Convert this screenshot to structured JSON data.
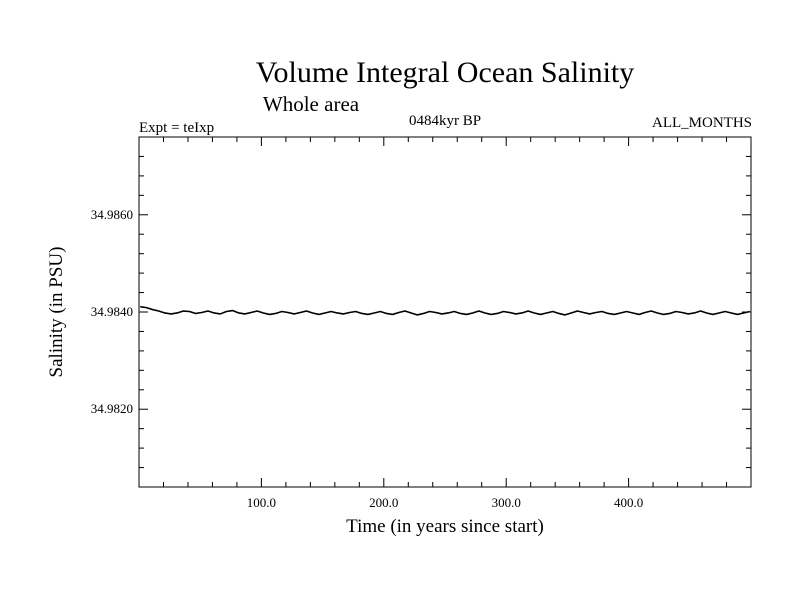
{
  "chart_data": {
    "type": "line",
    "title": "Volume Integral Ocean Salinity",
    "subtitle": "Whole area",
    "experiment": "Expt = teIxp",
    "period": "0484kyr BP",
    "months": "ALL_MONTHS",
    "xlabel": "Time (in years since start)",
    "ylabel": "Salinity (in PSU)",
    "xlim": [
      0,
      500
    ],
    "ylim": [
      34.9804,
      34.9876
    ],
    "xticks": [
      100,
      200,
      300,
      400
    ],
    "xtick_labels": [
      "100.0",
      "200.0",
      "300.0",
      "400.0"
    ],
    "yticks": [
      34.982,
      34.984,
      34.986
    ],
    "ytick_labels": [
      "34.9820",
      "34.9840",
      "34.9860"
    ],
    "series": [
      {
        "name": "salinity",
        "color": "#000000",
        "x_start": 1,
        "x_end": 499,
        "values": [
          34.98411,
          34.98409,
          34.98405,
          34.98402,
          34.98398,
          34.98396,
          34.98398,
          34.98402,
          34.98401,
          34.98397,
          34.98399,
          34.98402,
          34.98398,
          34.98396,
          34.98401,
          34.98403,
          34.98398,
          34.98396,
          34.98399,
          34.98402,
          34.98398,
          34.98395,
          34.98397,
          34.98401,
          34.98399,
          34.98396,
          34.98399,
          34.98402,
          34.98398,
          34.98395,
          34.98398,
          34.98401,
          34.98398,
          34.98396,
          34.98399,
          34.98401,
          34.98397,
          34.98395,
          34.98398,
          34.98401,
          34.98397,
          34.98395,
          34.98399,
          34.98402,
          34.98398,
          34.98394,
          34.98397,
          34.98401,
          34.98399,
          34.98396,
          34.98398,
          34.98401,
          34.98397,
          34.98395,
          34.98398,
          34.98402,
          34.98398,
          34.98395,
          34.98397,
          34.98401,
          34.98399,
          34.98396,
          34.98398,
          34.98402,
          34.98398,
          34.98395,
          34.98398,
          34.98401,
          34.98397,
          34.98394,
          34.98398,
          34.98402,
          34.98399,
          34.98396,
          34.98399,
          34.98401,
          34.98397,
          34.98395,
          34.98398,
          34.98401,
          34.98398,
          34.98395,
          34.98399,
          34.98402,
          34.98398,
          34.98395,
          34.98397,
          34.98401,
          34.98399,
          34.98396,
          34.98398,
          34.98402,
          34.98398,
          34.98395,
          34.98398,
          34.98401,
          34.98398,
          34.98395,
          34.98398,
          34.98401
        ]
      }
    ]
  }
}
